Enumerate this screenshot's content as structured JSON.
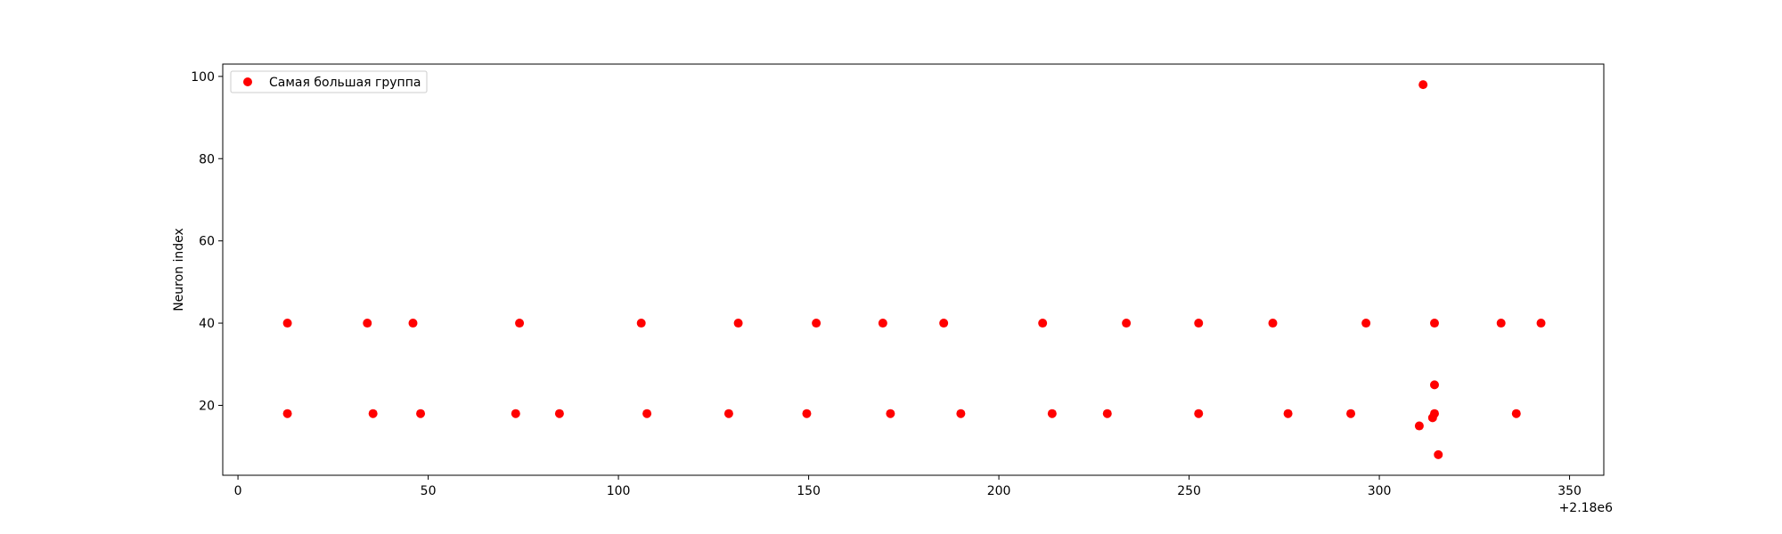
{
  "chart_data": {
    "type": "scatter",
    "title": "",
    "xlabel": "",
    "ylabel": "Neuron index",
    "x_offset_label": "+2.18e6",
    "xlim": [
      -4,
      359
    ],
    "ylim": [
      3,
      103
    ],
    "x_ticks": [
      0,
      50,
      100,
      150,
      200,
      250,
      300,
      350
    ],
    "y_ticks": [
      20,
      40,
      60,
      80,
      100
    ],
    "grid": false,
    "legend_position": "top-left",
    "color": "#ff0000",
    "series": [
      {
        "name": "Самая большая группа",
        "x": [
          13,
          34,
          46,
          74,
          106,
          131.5,
          152,
          169.5,
          185.5,
          211.5,
          233.5,
          252.5,
          272,
          296.5,
          314.5,
          332,
          342.5,
          13,
          35.5,
          48,
          73,
          84.5,
          107.5,
          129,
          149.5,
          171.5,
          190,
          214,
          228.5,
          252.5,
          276,
          292.5,
          314.5,
          336,
          311.5,
          310.5,
          314,
          314.5,
          315.5
        ],
        "y": [
          40,
          40,
          40,
          40,
          40,
          40,
          40,
          40,
          40,
          40,
          40,
          40,
          40,
          40,
          40,
          40,
          40,
          18,
          18,
          18,
          18,
          18,
          18,
          18,
          18,
          18,
          18,
          18,
          18,
          18,
          18,
          18,
          18,
          18,
          98,
          15,
          17,
          25,
          8
        ]
      }
    ]
  }
}
